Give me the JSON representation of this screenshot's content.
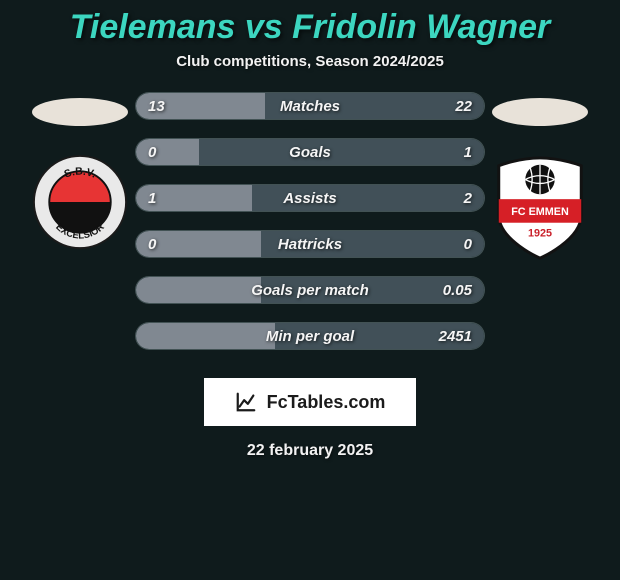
{
  "background_color": "#0f1b1c",
  "title_color": "#3cd6c0",
  "subtitle_color": "#f2f2f2",
  "title": "Tielemans vs Fridolin Wagner",
  "subtitle": "Club competitions, Season 2024/2025",
  "player_left": {
    "ellipse_color": "#e8e2d9",
    "club_name": "S.B.V. Excelsior",
    "badge": {
      "outer_fill": "#e9e9e9",
      "outer_stroke": "#1a1a1a",
      "top_half": "#e73434",
      "bottom_half": "#111111",
      "text_top": "S.B.V.",
      "text_bottom": "EXCELSIOR",
      "text_color": "#111111"
    }
  },
  "player_right": {
    "ellipse_color": "#e8e2d9",
    "club_name": "FC Emmen",
    "badge": {
      "shield_fill": "#ffffff",
      "shield_stroke": "#121212",
      "midband_color": "#d61f26",
      "text_top": "FC EMMEN",
      "year": "1925",
      "ball_fill": "#111111",
      "ball_line": "#ffffff"
    }
  },
  "bars": {
    "track_color": "#223437",
    "left_fill_color": "#808891",
    "right_fill_color": "#415058",
    "label_color": "#f5f5f5",
    "rows": [
      {
        "stat": "Matches",
        "left": "13",
        "right": "22",
        "left_pct": 37.1,
        "right_pct": 62.9
      },
      {
        "stat": "Goals",
        "left": "0",
        "right": "1",
        "left_pct": 18.0,
        "right_pct": 82.0
      },
      {
        "stat": "Assists",
        "left": "1",
        "right": "2",
        "left_pct": 33.3,
        "right_pct": 66.7
      },
      {
        "stat": "Hattricks",
        "left": "0",
        "right": "0",
        "left_pct": 36.0,
        "right_pct": 64.0
      },
      {
        "stat": "Goals per match",
        "left": "",
        "right": "0.05",
        "left_pct": 36.0,
        "right_pct": 64.0
      },
      {
        "stat": "Min per goal",
        "left": "",
        "right": "2451",
        "left_pct": 40.0,
        "right_pct": 60.0
      }
    ]
  },
  "footer": {
    "badge_bg": "#ffffff",
    "badge_text_color": "#1b1b1b",
    "brand": "FcTables.com",
    "date": "22 february 2025",
    "date_color": "#f2f2f2"
  }
}
